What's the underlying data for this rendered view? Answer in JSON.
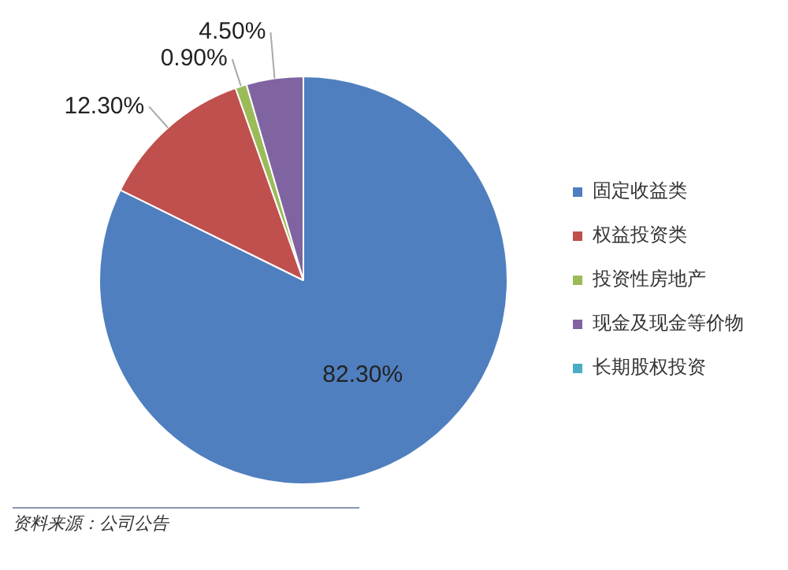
{
  "chart_data": {
    "type": "pie",
    "categories": [
      "固定收益类",
      "权益投资类",
      "投资性房地产",
      "现金及现金等价物",
      "长期股权投资"
    ],
    "values": [
      82.3,
      12.3,
      0.9,
      4.5,
      0
    ],
    "colors": [
      "#4f7fbf",
      "#c0504d",
      "#9bbb59",
      "#8064a2",
      "#4bacc6"
    ],
    "value_labels": [
      "82.30%",
      "12.30%",
      "0.90%",
      "4.50%",
      null
    ],
    "legend": "right",
    "annotations": [
      "资料来源：公司公告"
    ]
  }
}
